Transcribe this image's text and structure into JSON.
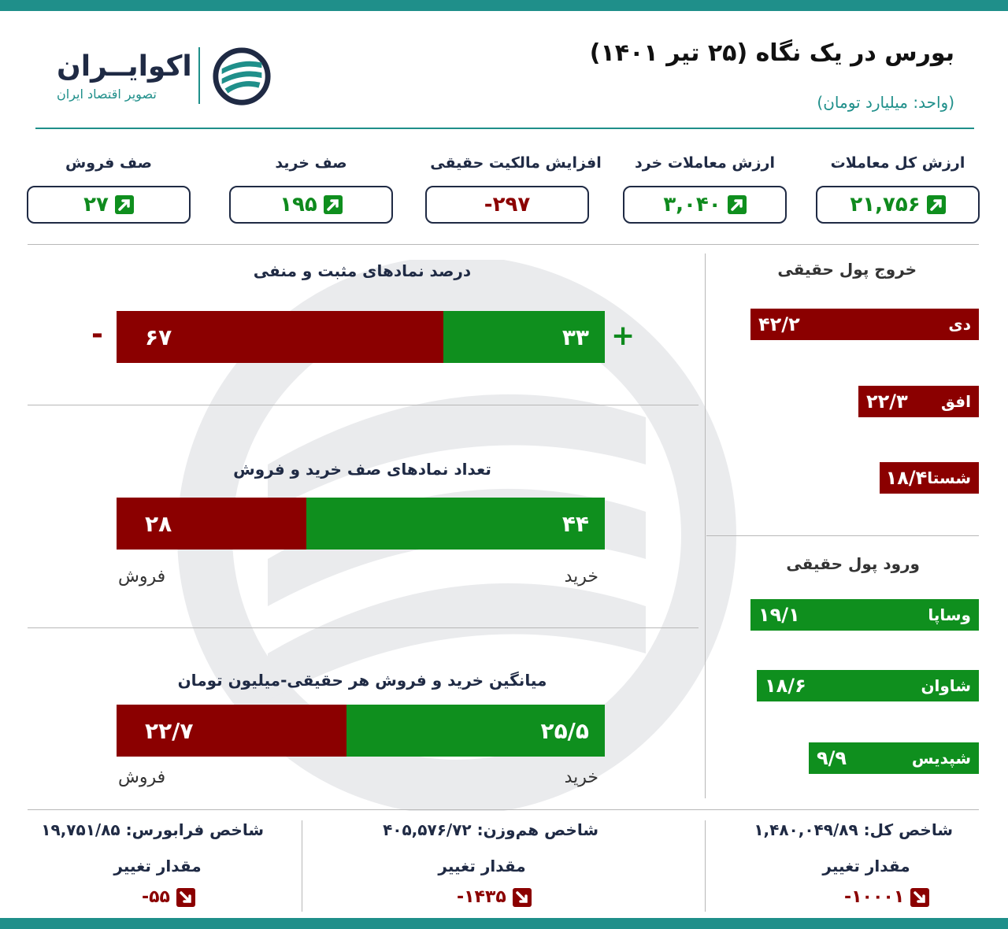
{
  "header": {
    "title": "بورس در یک نگاه (۲۵ تیر ۱۴۰۱)",
    "unit": "(واحد: میلیارد تومان)",
    "logo_name": "اکوایــران",
    "logo_sub": "تصویر اقتصاد ایران"
  },
  "colors": {
    "accent": "#1f8f8a",
    "positive": "#0f8f1e",
    "negative": "#8b0000",
    "ink": "#1f2a44"
  },
  "stats": [
    {
      "label": "ارزش کل معاملات",
      "value": "۲۱,۷۵۶",
      "trend": "up"
    },
    {
      "label": "ارزش معاملات خرد",
      "value": "۳,۰۴۰",
      "trend": "up"
    },
    {
      "label": "افزایش مالکیت حقیقی",
      "value": "-۲۹۷",
      "trend": "none"
    },
    {
      "label": "صف خرید",
      "value": "۱۹۵",
      "trend": "up"
    },
    {
      "label": "صف فروش",
      "value": "۲۷",
      "trend": "up"
    }
  ],
  "chart_data": [
    {
      "type": "bar",
      "title": "درصد نمادهای مثبت و منفی",
      "series": [
        {
          "name": "+",
          "values": [
            33
          ]
        },
        {
          "name": "-",
          "values": [
            67
          ]
        }
      ],
      "labels": {
        "positive": "۳۳",
        "negative": "۶۷"
      },
      "signs": {
        "positive": "+",
        "negative": "-"
      }
    },
    {
      "type": "bar",
      "title": "تعداد نمادهای صف خرید و فروش",
      "series": [
        {
          "name": "خرید",
          "values": [
            44
          ]
        },
        {
          "name": "فروش",
          "values": [
            28
          ]
        }
      ],
      "labels": {
        "positive": "۴۴",
        "negative": "۲۸"
      }
    },
    {
      "type": "bar",
      "title": "میانگین خرید و فروش هر حقیقی-میلیون تومان",
      "series": [
        {
          "name": "خرید",
          "values": [
            25.5
          ]
        },
        {
          "name": "فروش",
          "values": [
            22.7
          ]
        }
      ],
      "labels": {
        "positive": "۲۵/۵",
        "negative": "۲۲/۷"
      }
    },
    {
      "type": "bar",
      "title": "خروج پول حقیقی",
      "categories": [
        "دی",
        "افق",
        "شستا"
      ],
      "values": [
        42.2,
        22.3,
        18.4
      ],
      "labels": [
        "۴۲/۲",
        "۲۲/۳",
        "۱۸/۴"
      ]
    },
    {
      "type": "bar",
      "title": "ورود پول حقیقی",
      "categories": [
        "وساپا",
        "شاوان",
        "شپدیس"
      ],
      "values": [
        19.1,
        18.6,
        9.9
      ],
      "labels": [
        "۱۹/۱",
        "۱۸/۶",
        "۹/۹"
      ]
    }
  ],
  "indices": [
    {
      "name": "شاخص کل:",
      "value": "۱,۴۸۰,۰۴۹/۸۹",
      "change_label": "مقدار تغییر",
      "change": "-۱۰۰۰۱"
    },
    {
      "name": "شاخص هم‌وزن:",
      "value": "۴۰۵,۵۷۶/۷۲",
      "change_label": "مقدار تغییر",
      "change": "-۱۴۳۵"
    },
    {
      "name": "شاخص فرابورس:",
      "value": "۱۹,۷۵۱/۸۵",
      "change_label": "مقدار تغییر",
      "change": "-۵۵"
    }
  ]
}
